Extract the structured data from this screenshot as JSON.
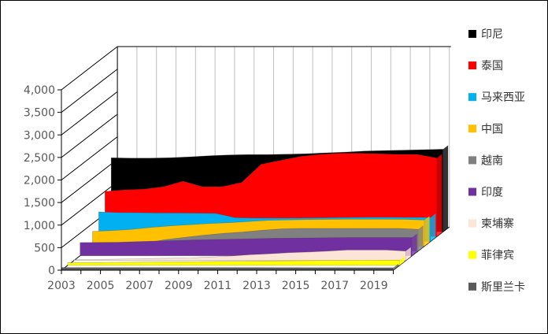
{
  "chart_data": {
    "type": "area",
    "subtype": "3d-area",
    "title": "",
    "xlabel": "",
    "ylabel": "",
    "ylim": [
      0,
      4000
    ],
    "yticks": [
      "0",
      "500",
      "1,000",
      "1,500",
      "2,000",
      "2,500",
      "3,000",
      "3,500",
      "4,000"
    ],
    "xtick_labels": [
      "2003",
      "2005",
      "2007",
      "2009",
      "2011",
      "2013",
      "2015",
      "2017",
      "2019"
    ],
    "x": [
      2003,
      2004,
      2005,
      2006,
      2007,
      2008,
      2009,
      2010,
      2011,
      2012,
      2013,
      2014,
      2015,
      2016,
      2017,
      2018,
      2019,
      2020
    ],
    "grid": true,
    "legend_position": "right",
    "series": [
      {
        "name": "印尼",
        "color": "#000000",
        "values": [
          1640,
          1633,
          1633,
          1642,
          1660,
          1685,
          1703,
          1712,
          1712,
          1720,
          1730,
          1750,
          1766,
          1790,
          1800,
          1810,
          1820,
          1830
        ]
      },
      {
        "name": "泰国",
        "color": "#ff0000",
        "values": [
          1000,
          1035,
          1052,
          1105,
          1227,
          1105,
          1105,
          1200,
          1603,
          1690,
          1777,
          1821,
          1847,
          1847,
          1838,
          1821,
          1821,
          1742
        ]
      },
      {
        "name": "马来西亚",
        "color": "#00b0f0",
        "values": [
          655,
          638,
          635,
          630,
          629,
          625,
          620,
          524,
          515,
          515,
          515,
          520,
          525,
          530,
          533,
          533,
          530,
          530
        ]
      },
      {
        "name": "中国",
        "color": "#ffc000",
        "values": [
          328,
          345,
          371,
          415,
          450,
          476,
          502,
          520,
          546,
          572,
          581,
          590,
          595,
          598,
          598,
          598,
          595,
          580
        ]
      },
      {
        "name": "越南",
        "color": "#808080",
        "values": [
          80,
          100,
          130,
          170,
          250,
          300,
          350,
          390,
          420,
          460,
          490,
          500,
          500,
          500,
          500,
          500,
          500,
          480
        ]
      },
      {
        "name": "印度",
        "color": "#7030a0",
        "values": [
          293,
          297,
          301,
          315,
          328,
          340,
          354,
          362,
          371,
          380,
          389,
          393,
          397,
          402,
          406,
          406,
          406,
          406
        ]
      },
      {
        "name": "柬埔寨",
        "color": "#fce4d6",
        "values": [
          20,
          25,
          30,
          38,
          45,
          52,
          60,
          80,
          100,
          130,
          150,
          175,
          190,
          210,
          235,
          235,
          235,
          210
        ]
      },
      {
        "name": "菲律宾",
        "color": "#ffff00",
        "values": [
          60,
          63,
          66,
          70,
          73,
          76,
          80,
          84,
          88,
          92,
          96,
          100,
          105,
          108,
          110,
          112,
          115,
          118
        ]
      },
      {
        "name": "斯里兰卡",
        "color": "#595959",
        "values": [
          60,
          60,
          60,
          60,
          60,
          60,
          60,
          60,
          60,
          58,
          58,
          57,
          57,
          56,
          56,
          55,
          55,
          55
        ]
      }
    ]
  }
}
